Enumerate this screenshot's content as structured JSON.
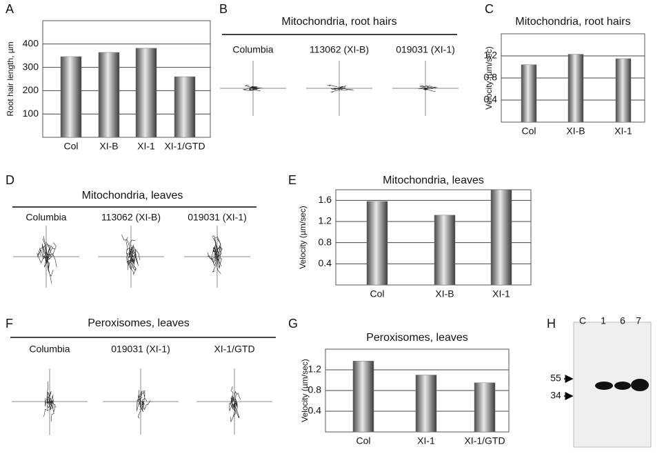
{
  "chart_data": [
    {
      "type": "bar",
      "y_label": "Root hair length, µm",
      "categories": [
        "Col",
        "XI-B",
        "XI-1",
        "XI-1/GTD"
      ],
      "values": [
        346,
        364,
        382,
        260
      ],
      "ylim": [
        0,
        500
      ],
      "yticks": [
        100,
        200,
        300,
        400
      ],
      "grid": true,
      "color": "#777777"
    },
    {
      "type": "bar",
      "title": "Mitochondria, root hairs",
      "y_label": "Velocity (µm/sec)",
      "categories": [
        "Col",
        "XI-B",
        "XI-1"
      ],
      "values": [
        1.04,
        1.23,
        1.15
      ],
      "ylim": [
        0,
        1.6
      ],
      "yticks": [
        0.4,
        0.8,
        1.2
      ],
      "grid": true,
      "color": "#777777"
    },
    {
      "type": "bar",
      "title": "Mitochondria, leaves",
      "y_label": "Velocity (µm/sec)",
      "categories": [
        "Col",
        "XI-B",
        "XI-1"
      ],
      "values": [
        1.58,
        1.32,
        1.8
      ],
      "ylim": [
        0,
        1.8
      ],
      "yticks": [
        0.4,
        0.8,
        1.2,
        1.6
      ],
      "grid": true,
      "color": "#777777"
    },
    {
      "type": "bar",
      "title": "Peroxisomes, leaves",
      "y_label": "Velocity (µm/sec)",
      "categories": [
        "Col",
        "XI-1",
        "XI-1/GTD"
      ],
      "values": [
        1.37,
        1.1,
        0.95
      ],
      "ylim": [
        0,
        1.6
      ],
      "yticks": [
        0.4,
        0.8,
        1.2
      ],
      "grid": true,
      "color": "#777777"
    }
  ],
  "panel_letters": [
    "A",
    "B",
    "C",
    "D",
    "E",
    "F",
    "G",
    "H"
  ],
  "panel_b": {
    "title": "Mitochondria, root hairs",
    "labels": [
      "Columbia",
      "113062 (XI-B)",
      "019031 (XI-1)"
    ]
  },
  "panel_d": {
    "title": "Mitochondria, leaves",
    "labels": [
      "Columbia",
      "113062 (XI-B)",
      "019031 (XI-1)"
    ]
  },
  "panel_f": {
    "title": "Peroxisomes, leaves",
    "labels": [
      "Columbia",
      "019031 (XI-1)",
      "XI-1/GTD"
    ]
  },
  "panel_h": {
    "lanes": [
      "C",
      "1",
      "6",
      "7"
    ],
    "markers": [
      "55",
      "34"
    ]
  }
}
